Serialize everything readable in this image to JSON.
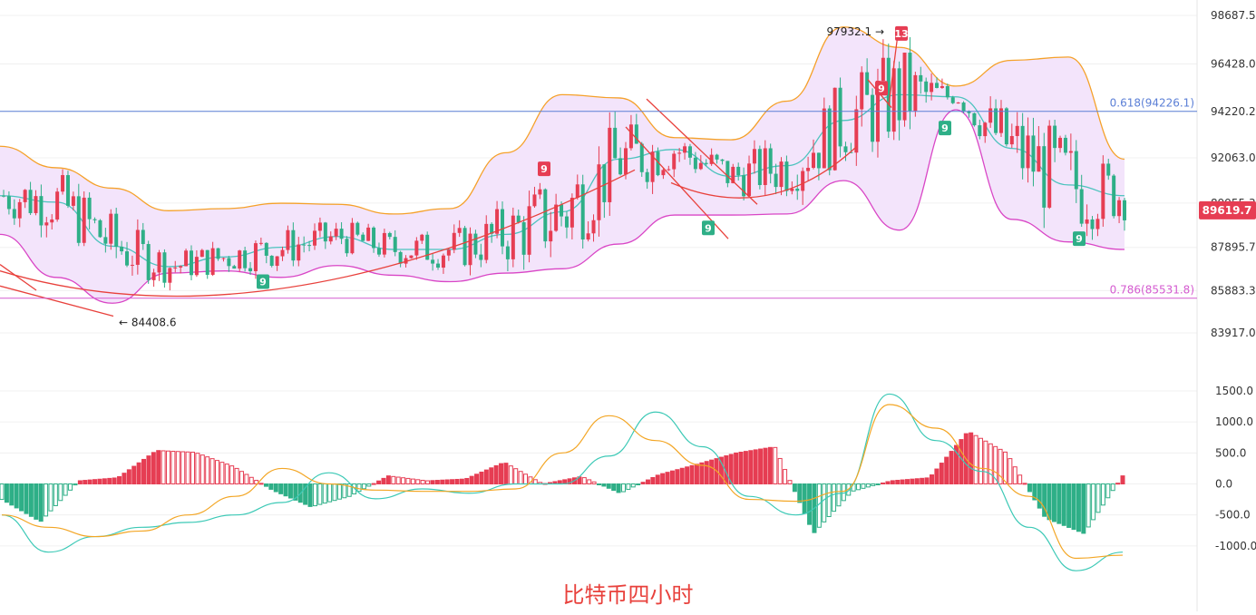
{
  "caption": "比特币四小时",
  "colors": {
    "up": "#e63d53",
    "down": "#2eaf87",
    "band_fill": "#f3e4fb",
    "upper_band": "#f5a12a",
    "lower_band": "#d946c6",
    "mid_band": "#4cc3be",
    "fib_618": "#5b7fd6",
    "fib_786": "#d45bd0",
    "dif": "#3cc9b6",
    "dea": "#f3a625",
    "price_tag": "#e63d53",
    "caption": "#e8413c"
  },
  "price_axis": [
    "98687.5",
    "96428.0",
    "94220.2",
    "92063.0",
    "89955.3",
    "87895.7",
    "85883.3",
    "83917.0"
  ],
  "macd_axis": [
    "1500.0",
    "1000.0",
    "500.0",
    "0.0",
    "-500.0",
    "-1000.0"
  ],
  "current_price": "89619.7",
  "fib_levels": [
    {
      "label": "0.618(94226.1)",
      "value": 94226.1
    },
    {
      "label": "0.786(85531.8)",
      "value": 85531.8
    }
  ],
  "annotations": {
    "high": "97932.1 →",
    "low": "← 84408.6"
  },
  "td_markers": [
    {
      "text": "9",
      "type": "sell"
    },
    {
      "text": "9",
      "type": "sell"
    },
    {
      "text": "13",
      "type": "sell"
    },
    {
      "text": "9",
      "type": "buy"
    },
    {
      "text": "9",
      "type": "buy"
    },
    {
      "text": "9",
      "type": "buy"
    },
    {
      "text": "9",
      "type": "buy"
    }
  ],
  "chart_data": [
    {
      "type": "candlestick",
      "price_range": [
        83917.0,
        98687.5
      ],
      "series": [
        {
          "name": "Bollinger Upper",
          "values": [
            92600,
            91600,
            90650,
            89600,
            89700,
            89950,
            89900,
            89450,
            89700,
            92300,
            95000,
            94850,
            93000,
            92900,
            94700,
            98150,
            97200,
            95400,
            96600,
            96750,
            92000
          ]
        },
        {
          "name": "Bollinger Mid",
          "values": [
            90300,
            90000,
            87950,
            87000,
            87450,
            87900,
            88400,
            87800,
            87800,
            88500,
            89550,
            92000,
            92450,
            91200,
            91700,
            93800,
            95000,
            94900,
            92500,
            90800,
            90300
          ]
        },
        {
          "name": "Bollinger Lower",
          "values": [
            88500,
            86500,
            85300,
            86700,
            86800,
            86500,
            87050,
            86600,
            86300,
            86700,
            86900,
            88050,
            89400,
            89400,
            89450,
            91000,
            88700,
            94300,
            89200,
            88150,
            87800
          ]
        }
      ],
      "markers": {
        "high": 97932.1,
        "low": 84408.6,
        "last": 89619.7
      }
    },
    {
      "type": "bar",
      "name": "MACD",
      "ylim": [
        -1500,
        1500
      ],
      "series": [
        {
          "name": "Histogram",
          "values": [
            -250,
            -610,
            50,
            100,
            540,
            510,
            280,
            -100,
            -370,
            -200,
            130,
            50,
            80,
            350,
            0,
            120,
            -150,
            150,
            320,
            500,
            600,
            -800,
            -120,
            50,
            100,
            850,
            500,
            -550,
            -800,
            130
          ]
        },
        {
          "name": "DIF",
          "values": [
            -500,
            -1100,
            -850,
            -700,
            -620,
            -500,
            -300,
            180,
            -240,
            -80,
            -150,
            0,
            0,
            450,
            1160,
            600,
            -200,
            -500,
            -150,
            1450,
            700,
            200,
            -700,
            -1400,
            -1100
          ]
        },
        {
          "name": "DEA",
          "values": [
            -500,
            -700,
            -850,
            -760,
            -500,
            -200,
            250,
            0,
            -100,
            -120,
            -120,
            -80,
            500,
            1100,
            700,
            300,
            -250,
            -280,
            -120,
            1280,
            900,
            250,
            -200,
            -1200,
            -1150
          ]
        }
      ]
    }
  ]
}
